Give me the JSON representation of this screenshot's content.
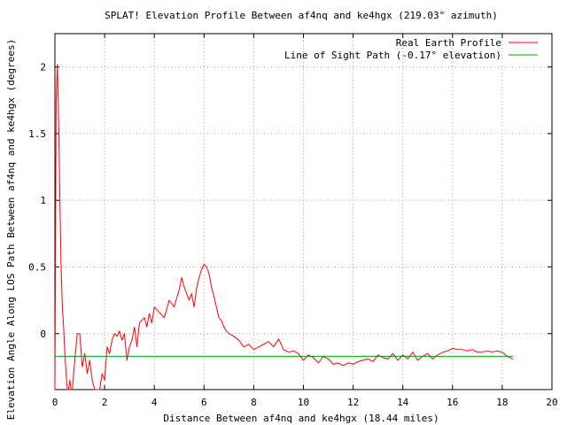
{
  "chart_data": {
    "type": "line",
    "title": "SPLAT! Elevation Profile Between af4nq and ke4hgx (219.03° azimuth)",
    "xlabel": "Distance Between af4nq and ke4hgx (18.44 miles)",
    "ylabel": "Elevation Angle Along LOS Path Between af4nq and ke4hgx (degrees)",
    "xlim": [
      0,
      20
    ],
    "ylim": [
      -0.42,
      2.25
    ],
    "x_ticks": [
      0,
      2,
      4,
      6,
      8,
      10,
      12,
      14,
      16,
      18,
      20
    ],
    "y_ticks": [
      0,
      0.5,
      1,
      1.5,
      2
    ],
    "y_tick_labels": [
      "0",
      "0.5",
      "1",
      "1.5",
      "2"
    ],
    "grid": true,
    "legend_position": "top-right",
    "series": [
      {
        "name": "Real Earth Profile",
        "color": "#ff0000",
        "x": [
          0.0,
          0.05,
          0.1,
          0.15,
          0.2,
          0.25,
          0.3,
          0.35,
          0.4,
          0.45,
          0.5,
          0.55,
          0.6,
          0.65,
          0.7,
          0.8,
          0.9,
          1.0,
          1.1,
          1.2,
          1.3,
          1.4,
          1.5,
          1.6,
          1.7,
          1.8,
          1.9,
          2.0,
          2.1,
          2.2,
          2.3,
          2.4,
          2.5,
          2.6,
          2.7,
          2.8,
          2.9,
          3.0,
          3.1,
          3.2,
          3.3,
          3.4,
          3.5,
          3.6,
          3.7,
          3.8,
          3.9,
          4.0,
          4.2,
          4.4,
          4.6,
          4.8,
          5.0,
          5.1,
          5.2,
          5.3,
          5.4,
          5.5,
          5.6,
          5.7,
          5.8,
          5.9,
          6.0,
          6.1,
          6.2,
          6.3,
          6.4,
          6.5,
          6.6,
          6.7,
          6.8,
          6.9,
          7.0,
          7.2,
          7.4,
          7.6,
          7.8,
          8.0,
          8.2,
          8.4,
          8.6,
          8.8,
          9.0,
          9.2,
          9.4,
          9.6,
          9.8,
          10.0,
          10.2,
          10.4,
          10.6,
          10.8,
          11.0,
          11.2,
          11.4,
          11.6,
          11.8,
          12.0,
          12.2,
          12.4,
          12.6,
          12.8,
          13.0,
          13.2,
          13.4,
          13.6,
          13.8,
          14.0,
          14.2,
          14.4,
          14.6,
          14.8,
          15.0,
          15.2,
          15.4,
          15.6,
          15.8,
          16.0,
          16.2,
          16.4,
          16.6,
          16.8,
          17.0,
          17.2,
          17.4,
          17.6,
          17.8,
          18.0,
          18.2,
          18.44
        ],
        "values": [
          -0.42,
          1.75,
          2.02,
          1.6,
          1.0,
          0.5,
          0.2,
          0.05,
          -0.15,
          -0.3,
          -0.42,
          -0.42,
          -0.35,
          -0.42,
          -0.42,
          -0.2,
          0.0,
          0.0,
          -0.25,
          -0.15,
          -0.3,
          -0.2,
          -0.35,
          -0.42,
          -0.42,
          -0.42,
          -0.3,
          -0.35,
          -0.1,
          -0.15,
          -0.05,
          0.0,
          -0.02,
          0.02,
          -0.05,
          0.0,
          -0.2,
          -0.1,
          -0.05,
          0.05,
          -0.1,
          0.08,
          0.1,
          0.12,
          0.05,
          0.15,
          0.08,
          0.2,
          0.16,
          0.12,
          0.25,
          0.2,
          0.33,
          0.42,
          0.35,
          0.3,
          0.25,
          0.3,
          0.2,
          0.34,
          0.42,
          0.48,
          0.52,
          0.5,
          0.45,
          0.35,
          0.28,
          0.2,
          0.12,
          0.1,
          0.05,
          0.02,
          0.0,
          -0.02,
          -0.05,
          -0.1,
          -0.08,
          -0.12,
          -0.1,
          -0.08,
          -0.06,
          -0.1,
          -0.04,
          -0.12,
          -0.14,
          -0.13,
          -0.15,
          -0.2,
          -0.16,
          -0.18,
          -0.22,
          -0.17,
          -0.19,
          -0.23,
          -0.22,
          -0.24,
          -0.22,
          -0.23,
          -0.21,
          -0.2,
          -0.19,
          -0.21,
          -0.16,
          -0.18,
          -0.19,
          -0.15,
          -0.2,
          -0.16,
          -0.19,
          -0.14,
          -0.2,
          -0.17,
          -0.15,
          -0.19,
          -0.16,
          -0.14,
          -0.13,
          -0.11,
          -0.12,
          -0.12,
          -0.13,
          -0.12,
          -0.14,
          -0.14,
          -0.13,
          -0.14,
          -0.13,
          -0.14,
          -0.17,
          -0.19
        ]
      },
      {
        "name": "Line of Sight Path (-0.17° elevation)",
        "color": "#00a000",
        "x": [
          0,
          18.44
        ],
        "values": [
          -0.17,
          -0.17
        ]
      }
    ]
  }
}
